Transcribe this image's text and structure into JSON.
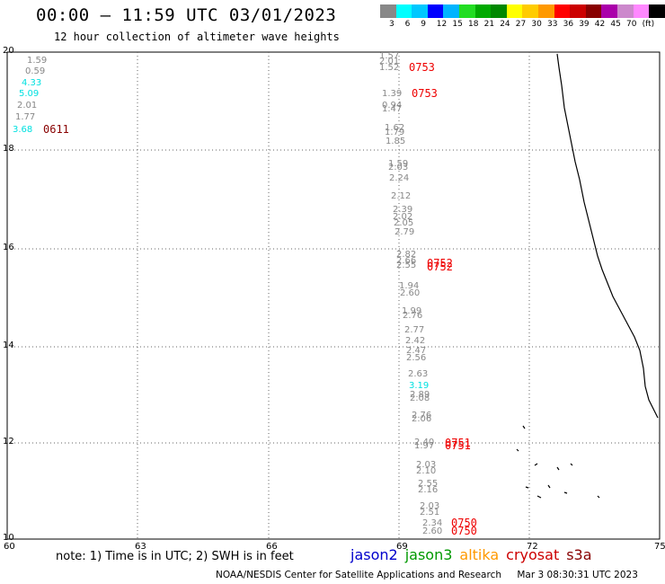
{
  "title": "00:00 – 11:59 UTC 03/01/2023",
  "subtitle": "12 hour collection of altimeter wave heights",
  "colorbar": {
    "colors": [
      "#888888",
      "#00ffff",
      "#00c8ff",
      "#0000ff",
      "#00b4ff",
      "#22dd22",
      "#00aa00",
      "#008800",
      "#ffff00",
      "#ffcc00",
      "#ff9900",
      "#ff0000",
      "#cc0000",
      "#880000",
      "#aa00aa",
      "#cc88cc",
      "#ff88ff",
      "#000000"
    ],
    "labels": [
      "3",
      "6",
      "9",
      "12",
      "15",
      "18",
      "21",
      "24",
      "27",
      "30",
      "33",
      "36",
      "39",
      "42",
      "45",
      "70",
      "(ft)"
    ]
  },
  "axes": {
    "lon_ticks": [
      "60",
      "63",
      "66",
      "69",
      "72",
      "75"
    ],
    "lat_ticks": [
      "20",
      "18",
      "16",
      "14",
      "12",
      "10"
    ]
  },
  "swh_left": [
    {
      "v": "1.59",
      "c": "#888888"
    },
    {
      "v": "0.59",
      "c": "#888888"
    },
    {
      "v": "4.33",
      "c": "#00e0e0"
    },
    {
      "v": "5.09",
      "c": "#00e0e0"
    },
    {
      "v": "2.01",
      "c": "#888888"
    },
    {
      "v": "1.77",
      "c": "#888888"
    },
    {
      "v": "3.68",
      "c": "#00e0e0"
    }
  ],
  "swh_track": [
    "1.57",
    "2.01",
    "1.52",
    "1.39",
    "1.47",
    "0.94",
    "1.62",
    "1.79",
    "1.85",
    "1.59",
    "2.03",
    "2.24",
    "2.12",
    "2.39",
    "2.02",
    "2.05",
    "2.79",
    "2.82",
    "2.66",
    "2.55",
    "1.94",
    "2.60",
    "1.99",
    "2.76",
    "2.77",
    "2.42",
    "2.47",
    "2.56",
    "2.63",
    "3.19",
    "2.89",
    "2.08",
    "2.76",
    "2.06",
    "2.40",
    "1.97",
    "2.03",
    "2.10",
    "2.55",
    "2.16",
    "2.03",
    "2.51",
    "2.34",
    "2.60"
  ],
  "times": [
    {
      "t": "0611",
      "c": "#880000"
    },
    {
      "t": "0753",
      "c": "#ee0000"
    },
    {
      "t": "0753",
      "c": "#ee0000"
    },
    {
      "t": "0752",
      "c": "#ee0000"
    },
    {
      "t": "0752",
      "c": "#ee0000"
    },
    {
      "t": "0751",
      "c": "#ee0000"
    },
    {
      "t": "0751",
      "c": "#ee0000"
    },
    {
      "t": "0750",
      "c": "#ee0000"
    },
    {
      "t": "0750",
      "c": "#ee0000"
    }
  ],
  "note": "note:  1) Time is in UTC;  2) SWH is in feet",
  "satellites": [
    {
      "name": "jason2",
      "color": "#0000cc"
    },
    {
      "name": "jason3",
      "color": "#009900"
    },
    {
      "name": "altika",
      "color": "#ff9900"
    },
    {
      "name": "cryosat",
      "color": "#cc0000"
    },
    {
      "name": "s3a",
      "color": "#880000"
    }
  ],
  "footer": {
    "credit": "NOAA/NESDIS Center for Satellite Applications and Research",
    "timestamp": "Mar  3 08:30:31 UTC 2023"
  }
}
